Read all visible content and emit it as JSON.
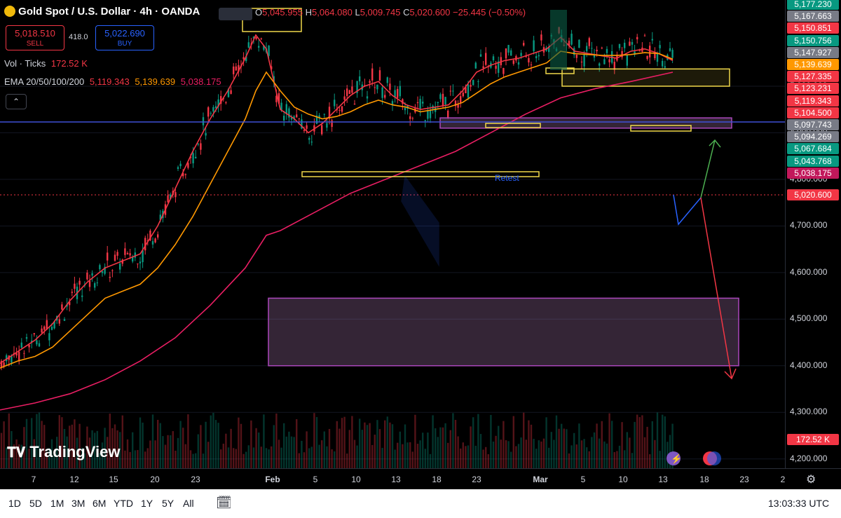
{
  "header": {
    "symbol_title": "Gold Spot / U.S. Dollar · 4h · OANDA",
    "ohlc": {
      "o_label": "O",
      "o_value": "5,045.955",
      "h_label": "H",
      "h_value": "5,064.080",
      "l_label": "L",
      "l_value": "5,009.745",
      "c_label": "C",
      "c_value": "5,020.600",
      "change": "−25.445 (−0.50%)"
    }
  },
  "trade": {
    "sell_price": "5,018.510",
    "sell_label": "SELL",
    "spread": "418.0",
    "buy_price": "5,022.690",
    "buy_label": "BUY"
  },
  "indicators": {
    "vol_label": "Vol · Ticks",
    "vol_value": "172.52 K",
    "ema_label": "EMA 20/50/100/200",
    "ema_values": [
      "5,119.343",
      "5,139.639",
      "5,038.175"
    ]
  },
  "price_axis": {
    "ticks": [
      "5,000.000",
      "4,900.000",
      "4,800.000",
      "4,700.000",
      "4,600.000",
      "4,500.000",
      "4,400.000",
      "4,300.000",
      "4,200.000"
    ],
    "labels": [
      {
        "text": "5,177.230",
        "color": "#089981"
      },
      {
        "text": "5,167.663",
        "color": "#787b86"
      },
      {
        "text": "5,150.851",
        "color": "#f23645"
      },
      {
        "text": "5,150.756",
        "color": "#089981"
      },
      {
        "text": "5,147.927",
        "color": "#787b86"
      },
      {
        "text": "5,139.639",
        "color": "#ff9800"
      },
      {
        "text": "5,127.335",
        "color": "#f23645"
      },
      {
        "text": "5,123.231",
        "color": "#f23645"
      },
      {
        "text": "5,119.343",
        "color": "#f23645"
      },
      {
        "text": "5,104.500",
        "color": "#f23645"
      },
      {
        "text": "5,097.743",
        "color": "#787b86"
      },
      {
        "text": "5,094.269",
        "color": "#787b86"
      },
      {
        "text": "5,067.684",
        "color": "#089981"
      },
      {
        "text": "5,043.768",
        "color": "#089981"
      },
      {
        "text": "5,038.175",
        "color": "#c2185b"
      },
      {
        "text": "5,020.600",
        "color": "#f23645"
      }
    ],
    "volume_label": "172.52 K"
  },
  "time_axis": {
    "labels": [
      "7",
      "12",
      "15",
      "20",
      "23",
      "Feb",
      "5",
      "10",
      "13",
      "18",
      "23",
      "Mar",
      "5",
      "10",
      "13",
      "18",
      "23",
      "2"
    ]
  },
  "annotations": {
    "retest_text": "Retest"
  },
  "branding": {
    "logo_text": "TradingView"
  },
  "bottom_bar": {
    "ranges": [
      "1D",
      "5D",
      "1M",
      "3M",
      "6M",
      "YTD",
      "1Y",
      "5Y",
      "All"
    ],
    "clock": "13:03:33 UTC"
  },
  "chart_data": {
    "type": "candlestick",
    "timeframe": "4h",
    "price_range": [
      4180,
      5185
    ],
    "horizontal_line": 5104.5,
    "last_price": 5020.6,
    "ema_series": [
      {
        "period": 20,
        "color": "#f23645",
        "x": [
          0,
          25,
          50,
          75,
          100,
          125,
          150,
          175,
          200,
          225,
          250,
          275,
          300,
          325,
          350,
          365,
          380,
          400,
          420,
          440,
          460,
          480,
          500,
          520,
          540,
          560,
          580,
          600,
          620,
          640,
          660,
          680,
          700,
          720,
          740,
          760,
          780,
          800,
          820,
          840,
          860,
          880,
          900,
          920,
          940,
          960
        ],
        "y": [
          4405,
          4430,
          4455,
          4490,
          4540,
          4580,
          4610,
          4625,
          4640,
          4700,
          4780,
          4860,
          4930,
          4990,
          5060,
          5110,
          5080,
          4950,
          4930,
          4900,
          4920,
          4950,
          4980,
          5000,
          5010,
          4980,
          4960,
          4950,
          4955,
          4960,
          4990,
          5030,
          5045,
          5055,
          5060,
          5070,
          5080,
          5105,
          5075,
          5070,
          5065,
          5060,
          5075,
          5080,
          5070,
          5055
        ]
      },
      {
        "period": 50,
        "color": "#ff9800",
        "x": [
          0,
          25,
          50,
          75,
          100,
          125,
          150,
          175,
          200,
          225,
          250,
          275,
          300,
          325,
          350,
          365,
          380,
          400,
          420,
          440,
          460,
          480,
          500,
          520,
          540,
          560,
          580,
          600,
          620,
          640,
          660,
          680,
          700,
          720,
          740,
          760,
          780,
          800,
          820,
          840,
          860,
          880,
          900,
          920,
          940,
          960
        ],
        "y": [
          4395,
          4410,
          4420,
          4440,
          4475,
          4510,
          4545,
          4560,
          4575,
          4610,
          4660,
          4720,
          4790,
          4860,
          4930,
          4990,
          5030,
          4990,
          4955,
          4940,
          4930,
          4935,
          4945,
          4960,
          4970,
          4960,
          4955,
          4945,
          4950,
          4955,
          4965,
          4985,
          5005,
          5020,
          5030,
          5040,
          5050,
          5075,
          5070,
          5068,
          5066,
          5066,
          5068,
          5072,
          5070,
          5058
        ]
      },
      {
        "period": 200,
        "color": "#e91e63",
        "x": [
          0,
          50,
          100,
          150,
          200,
          250,
          300,
          350,
          380,
          400,
          450,
          500,
          550,
          600,
          650,
          700,
          750,
          800,
          850,
          900,
          960
        ],
        "y": [
          4305,
          4320,
          4340,
          4370,
          4410,
          4460,
          4530,
          4610,
          4680,
          4690,
          4730,
          4770,
          4800,
          4830,
          4860,
          4900,
          4940,
          4975,
          4995,
          5010,
          5030
        ]
      }
    ],
    "zones": [
      {
        "kind": "support",
        "y": [
          4400,
          4545
        ]
      },
      {
        "kind": "support",
        "y": [
          4910,
          4932
        ]
      },
      {
        "kind": "key",
        "y": [
          5000,
          5037
        ]
      }
    ],
    "volume_series": {
      "unit": "ticks",
      "last": 172.52
    }
  }
}
